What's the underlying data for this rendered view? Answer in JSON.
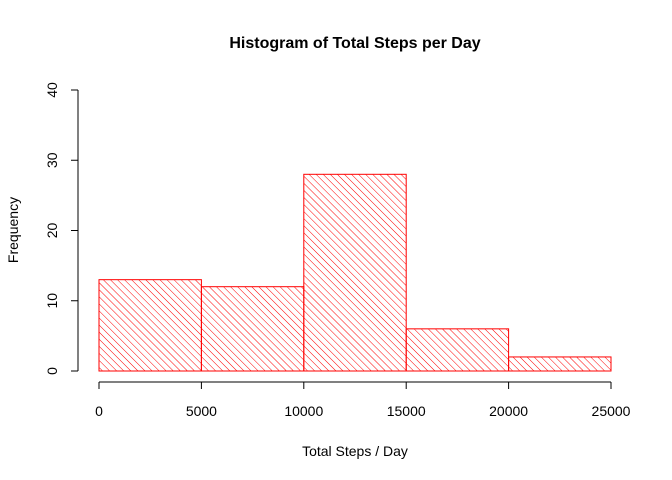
{
  "chart_data": {
    "type": "bar",
    "title": "Histogram of Total Steps per Day",
    "xlabel": "Total Steps / Day",
    "ylabel": "Frequency",
    "bins": [
      {
        "from": 0,
        "to": 5000,
        "count": 13
      },
      {
        "from": 5000,
        "to": 10000,
        "count": 12
      },
      {
        "from": 10000,
        "to": 15000,
        "count": 28
      },
      {
        "from": 15000,
        "to": 20000,
        "count": 6
      },
      {
        "from": 20000,
        "to": 25000,
        "count": 2
      }
    ],
    "xlim": [
      0,
      25000
    ],
    "ylim": [
      0,
      40
    ],
    "x_ticks": [
      "0",
      "5000",
      "10000",
      "15000",
      "20000",
      "25000"
    ],
    "y_ticks": [
      "0",
      "10",
      "20",
      "30",
      "40"
    ],
    "bar_color": "#ff0000",
    "fill_pattern": "diagonal-hatch",
    "grid": false
  }
}
